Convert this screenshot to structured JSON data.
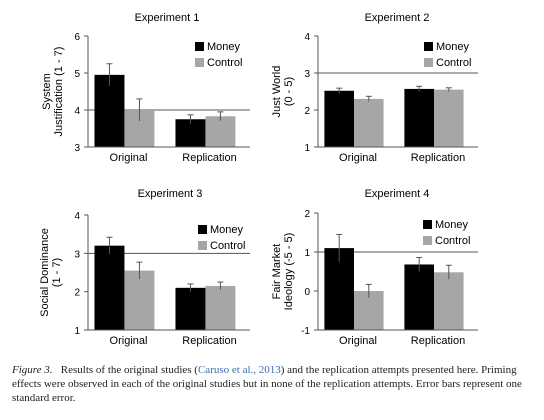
{
  "chart_data": [
    {
      "type": "bar",
      "title": "Experiment 1",
      "ylabel": [
        "System",
        "Justification (1 - 7)"
      ],
      "categories": [
        "Original",
        "Replication"
      ],
      "series": [
        {
          "name": "Money",
          "values": [
            4.95,
            3.75
          ],
          "errors": [
            0.3,
            0.12
          ]
        },
        {
          "name": "Control",
          "values": [
            4.0,
            3.83
          ],
          "errors": [
            0.3,
            0.12
          ]
        }
      ],
      "ylim": [
        3,
        6
      ],
      "yticks": [
        "3",
        "4",
        "5",
        "6"
      ],
      "reference_line": 4,
      "legend": "top-right",
      "colors": {
        "Money": "#000000",
        "Control": "#a6a6a6"
      }
    },
    {
      "type": "bar",
      "title": "Experiment 2",
      "ylabel": [
        "Just World",
        "(0 - 5)"
      ],
      "categories": [
        "Original",
        "Replication"
      ],
      "series": [
        {
          "name": "Money",
          "values": [
            2.52,
            2.57
          ],
          "errors": [
            0.07,
            0.07
          ]
        },
        {
          "name": "Control",
          "values": [
            2.3,
            2.55
          ],
          "errors": [
            0.07,
            0.05
          ]
        }
      ],
      "ylim": [
        1,
        4
      ],
      "yticks": [
        "1",
        "2",
        "3",
        "4"
      ],
      "reference_line": 3,
      "legend": "top-right",
      "colors": {
        "Money": "#000000",
        "Control": "#a6a6a6"
      }
    },
    {
      "type": "bar",
      "title": "Experiment 3",
      "ylabel": [
        "Social Dominance",
        "(1 - 7)"
      ],
      "categories": [
        "Original",
        "Replication"
      ],
      "series": [
        {
          "name": "Money",
          "values": [
            3.2,
            2.1
          ],
          "errors": [
            0.22,
            0.1
          ]
        },
        {
          "name": "Control",
          "values": [
            2.55,
            2.15
          ],
          "errors": [
            0.22,
            0.1
          ]
        }
      ],
      "ylim": [
        1,
        4
      ],
      "yticks": [
        "1",
        "2",
        "3",
        "4"
      ],
      "reference_line": 3,
      "legend": "top-right",
      "colors": {
        "Money": "#000000",
        "Control": "#a6a6a6"
      }
    },
    {
      "type": "bar",
      "title": "Experiment 4",
      "ylabel": [
        "Fair Market",
        "Ideology (-5 - 5)"
      ],
      "categories": [
        "Original",
        "Replication"
      ],
      "series": [
        {
          "name": "Money",
          "values": [
            1.1,
            0.68
          ],
          "errors": [
            0.35,
            0.18
          ]
        },
        {
          "name": "Control",
          "values": [
            0.0,
            0.48
          ],
          "errors": [
            0.17,
            0.18
          ]
        }
      ],
      "ylim": [
        -1,
        2
      ],
      "yticks": [
        "-1",
        "0",
        "1",
        "2"
      ],
      "reference_line": 1,
      "legend": "top-right",
      "colors": {
        "Money": "#000000",
        "Control": "#a6a6a6"
      }
    }
  ],
  "caption": {
    "figure_label": "Figure 3.",
    "text_before_citation": "Results of the original studies (",
    "citation": "Caruso et al., 2013",
    "text_after_citation": ") and the replication attempts presented here. Priming effects were observed in each of the original studies but in none of the replication attempts. Error bars represent one standard error."
  }
}
